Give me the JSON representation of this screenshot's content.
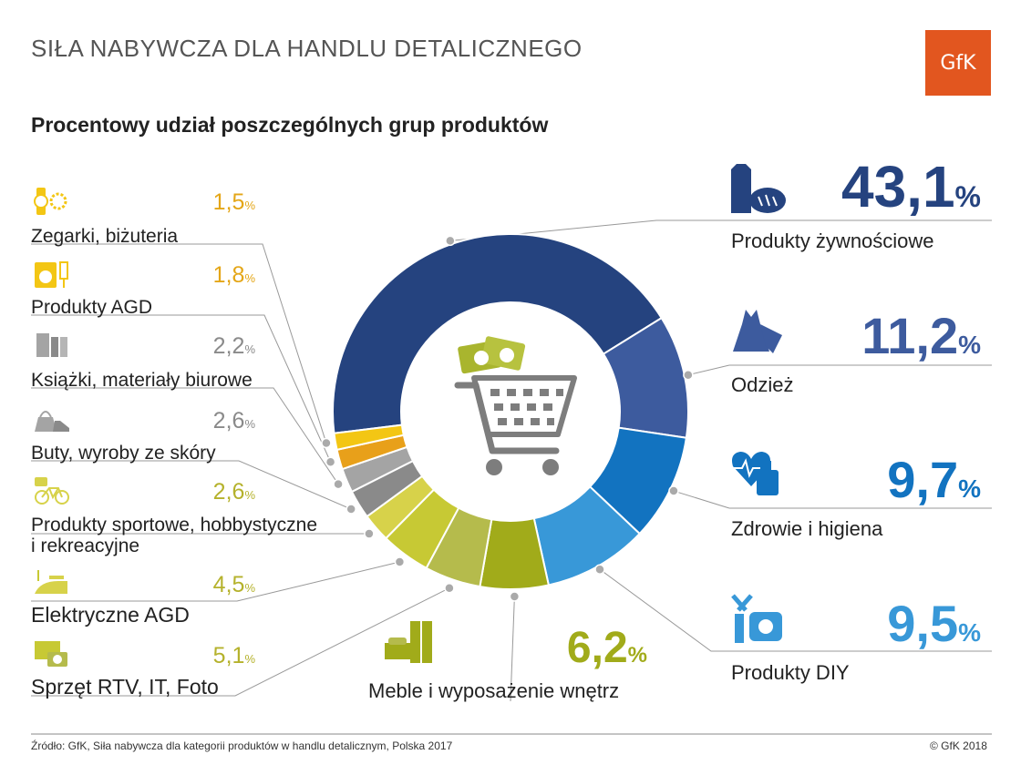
{
  "header": {
    "title": "SIŁA NABYWCZA DLA HANDLU DETALICZNEGO",
    "logo_text": "GfK",
    "logo_color": "#e2561f"
  },
  "chart_data": {
    "type": "pie",
    "title": "Procentowy udział poszczególnych grup produktów",
    "donut": true,
    "unit": "%",
    "slices": [
      {
        "label": "Produkty żywnościowe",
        "value": 43.1,
        "display": "43,1",
        "color": "#25437f",
        "icon": "food-icon"
      },
      {
        "label": "Odzież",
        "value": 11.2,
        "display": "11,2",
        "color": "#3d5b9e",
        "icon": "dress-icon"
      },
      {
        "label": "Zdrowie i higiena",
        "value": 9.7,
        "display": "9,7",
        "color": "#1273c0",
        "icon": "health-icon"
      },
      {
        "label": "Produkty DIY",
        "value": 9.5,
        "display": "9,5",
        "color": "#3898d8",
        "icon": "diy-tools-icon"
      },
      {
        "label": "Meble i wyposażenie wnętrz",
        "value": 6.2,
        "display": "6,2",
        "color": "#a1ab1a",
        "icon": "furniture-icon"
      },
      {
        "label": "Sprzęt RTV, IT, Foto",
        "value": 5.1,
        "display": "5,1",
        "color": "#b5bb4c",
        "icon": "tv-camera-icon"
      },
      {
        "label": "Elektryczne AGD",
        "value": 4.5,
        "display": "4,5",
        "color": "#c7c934",
        "icon": "iron-icon"
      },
      {
        "label": "Produkty sportowe, hobbystyczne i rekreacyjne",
        "value": 2.6,
        "display": "2,6",
        "color": "#d7d24a",
        "icon": "bicycle-icon"
      },
      {
        "label": "Buty, wyroby ze skóry",
        "value": 2.6,
        "display": "2,6",
        "color": "#8a8a8a",
        "icon": "bag-shoe-icon"
      },
      {
        "label": "Książki, materiały biurowe",
        "value": 2.2,
        "display": "2,2",
        "color": "#a4a4a4",
        "icon": "books-icon"
      },
      {
        "label": "Produkty AGD",
        "value": 1.8,
        "display": "1,8",
        "color": "#e8a01a",
        "icon": "washing-machine-icon"
      },
      {
        "label": "Zegarki, biżuteria",
        "value": 1.5,
        "display": "1,5",
        "color": "#f3c614",
        "icon": "watch-icon"
      }
    ]
  },
  "labels": {
    "left": [
      {
        "line1": "Zegarki, biżuteria",
        "line2": "",
        "pct": "1,5",
        "color": "#e4a617",
        "icon": "watch-icon"
      },
      {
        "line1": "Produkty AGD",
        "line2": "",
        "pct": "1,8",
        "color": "#e4a617",
        "icon": "washing-machine-icon"
      },
      {
        "line1": "Książki, materiały biurowe",
        "line2": "",
        "pct": "2,2",
        "color": "#8a8a8a",
        "icon": "books-icon"
      },
      {
        "line1": "Buty, wyroby ze skóry",
        "line2": "",
        "pct": "2,6",
        "color": "#8a8a8a",
        "icon": "bag-shoe-icon"
      },
      {
        "line1": "Produkty sportowe, hobbystyczne",
        "line2": "i rekreacyjne",
        "pct": "2,6",
        "color": "#b5b22c",
        "icon": "bicycle-icon"
      },
      {
        "line1": "Elektryczne AGD",
        "line2": "",
        "pct": "4,5",
        "color": "#b5b22c",
        "icon": "iron-icon"
      },
      {
        "line1": "Sprzęt RTV, IT, Foto",
        "line2": "",
        "pct": "5,1",
        "color": "#b5b22c",
        "icon": "tv-camera-icon"
      }
    ],
    "right": [
      {
        "label": "Produkty żywnościowe",
        "pct": "43,1",
        "color": "#25437f",
        "icon": "food-icon"
      },
      {
        "label": "Odzież",
        "pct": "11,2",
        "color": "#3d5b9e",
        "icon": "dress-icon"
      },
      {
        "label": "Zdrowie i higiena",
        "pct": "9,7",
        "color": "#1273c0",
        "icon": "health-icon"
      },
      {
        "label": "Produkty DIY",
        "pct": "9,5",
        "color": "#3898d8",
        "icon": "diy-tools-icon"
      }
    ],
    "bottom": {
      "label": "Meble i wyposażenie wnętrz",
      "pct": "6,2",
      "color": "#a1ab1a",
      "icon": "furniture-icon"
    },
    "percent_sign": "%"
  },
  "center_icon": "shopping-cart-icon",
  "footer": {
    "source": "Źródło: GfK, Siła nabywcza dla kategorii produktów w handlu detalicznym, Polska 2017",
    "copyright": "© GfK 2018"
  }
}
